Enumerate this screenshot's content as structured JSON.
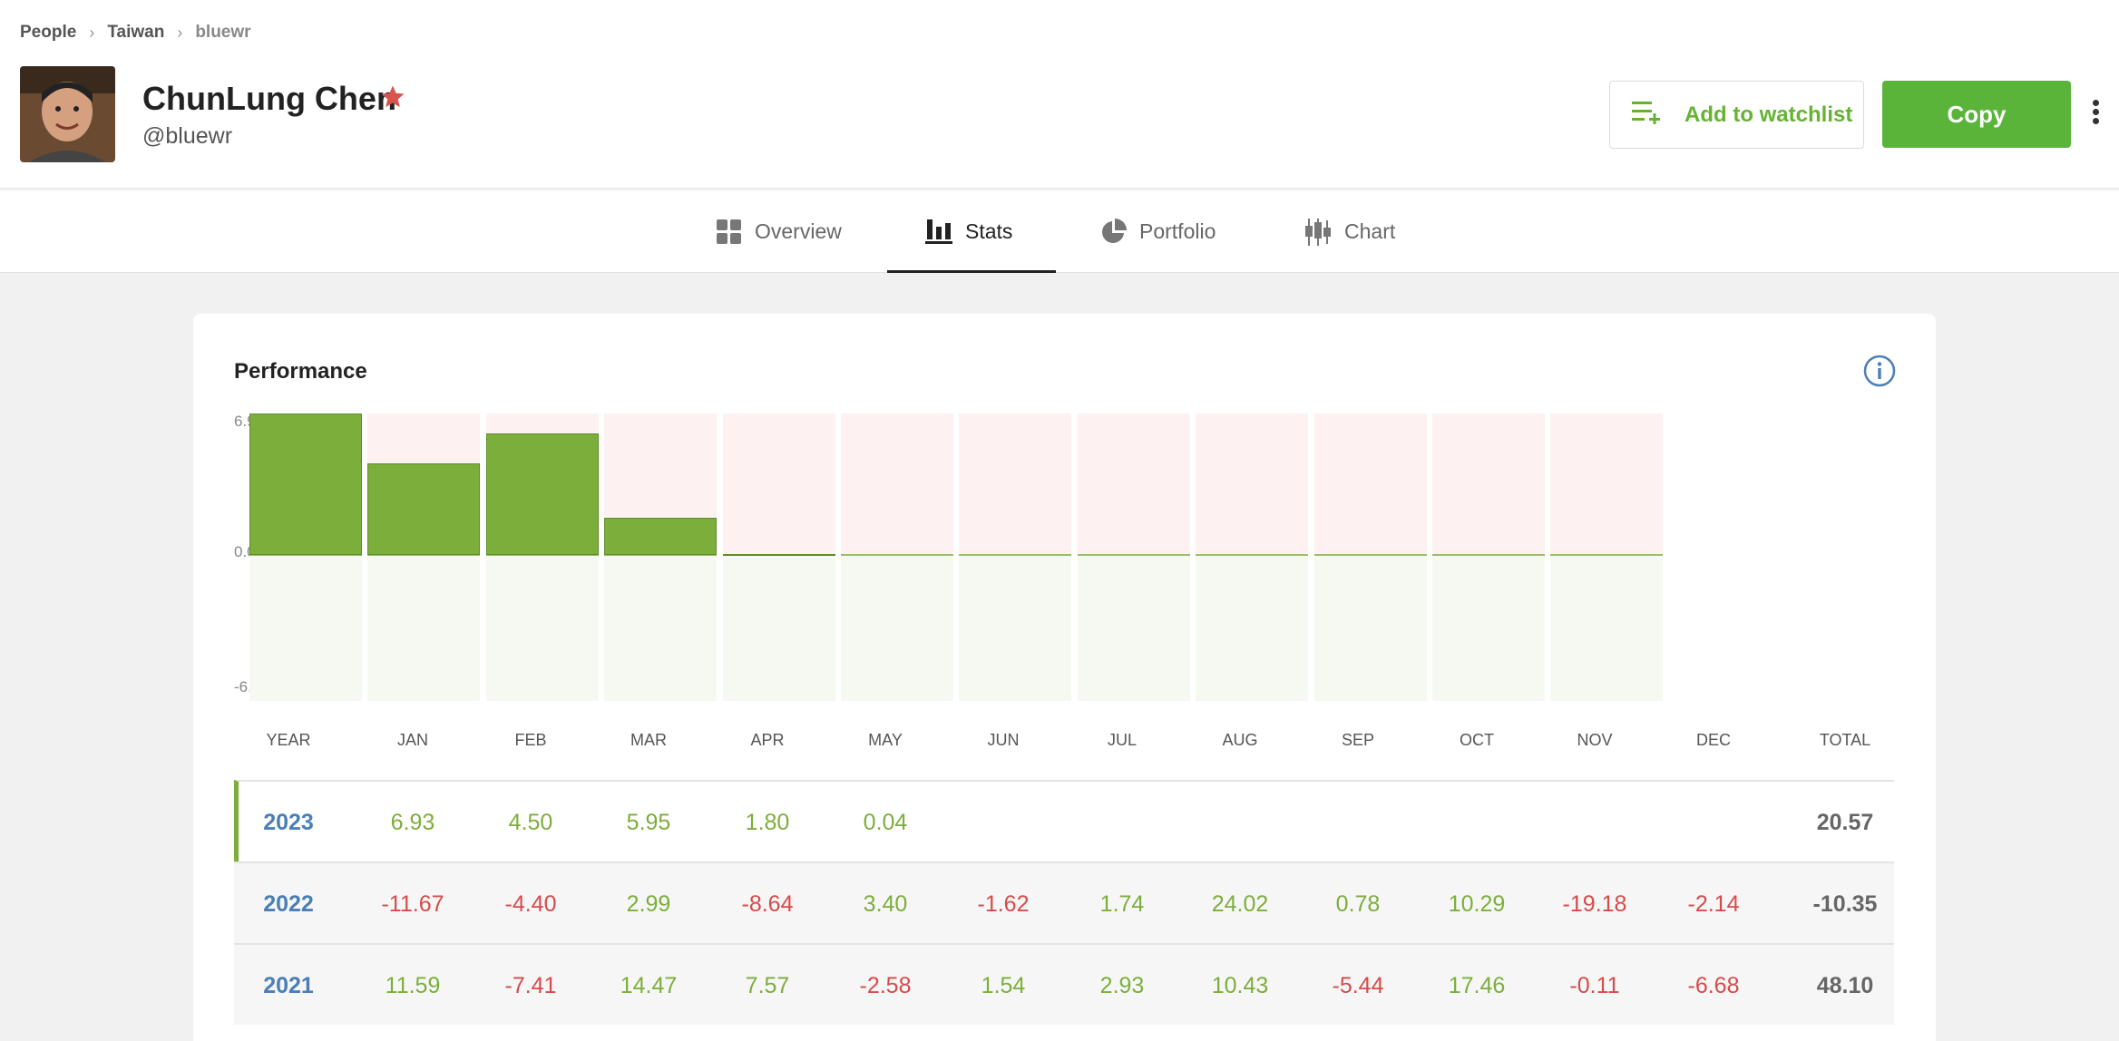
{
  "breadcrumb": {
    "people": "People",
    "country": "Taiwan",
    "user": "bluewr"
  },
  "profile": {
    "name": "ChunLung Chen",
    "handle": "@bluewr"
  },
  "actions": {
    "watchlist_label": "Add to watchlist",
    "copy_label": "Copy"
  },
  "tabs": [
    {
      "label": "Overview",
      "icon": "grid-icon"
    },
    {
      "label": "Stats",
      "icon": "bar-chart-icon"
    },
    {
      "label": "Portfolio",
      "icon": "pie-chart-icon"
    },
    {
      "label": "Chart",
      "icon": "candlestick-icon"
    }
  ],
  "performance": {
    "title": "Performance"
  },
  "colors": {
    "positive": "#7cae3b",
    "negative": "#d84a4a",
    "year": "#4a7fb6",
    "copy_button": "#5bb43a"
  },
  "chart_data": {
    "type": "bar",
    "categories": [
      "JAN",
      "FEB",
      "MAR",
      "APR",
      "MAY",
      "JUN",
      "JUL",
      "AUG",
      "SEP",
      "OCT",
      "NOV",
      "DEC"
    ],
    "series": [
      {
        "values": [
          6.93,
          4.5,
          5.95,
          1.8,
          0.04,
          null,
          null,
          null,
          null,
          null,
          null,
          null
        ]
      }
    ],
    "yticks": [
      "6.93",
      "0.00",
      "-6.93"
    ],
    "ylim": [
      -6.93,
      6.93
    ]
  },
  "table": {
    "headers": [
      "YEAR",
      "JAN",
      "FEB",
      "MAR",
      "APR",
      "MAY",
      "JUN",
      "JUL",
      "AUG",
      "SEP",
      "OCT",
      "NOV",
      "DEC",
      "TOTAL"
    ],
    "rows": [
      {
        "year": "2023",
        "values": [
          "6.93",
          "4.50",
          "5.95",
          "1.80",
          "0.04",
          "",
          "",
          "",
          "",
          "",
          "",
          ""
        ],
        "total": "20.57"
      },
      {
        "year": "2022",
        "values": [
          "-11.67",
          "-4.40",
          "2.99",
          "-8.64",
          "3.40",
          "-1.62",
          "1.74",
          "24.02",
          "0.78",
          "10.29",
          "-19.18",
          "-2.14"
        ],
        "total": "-10.35"
      },
      {
        "year": "2021",
        "values": [
          "11.59",
          "-7.41",
          "14.47",
          "7.57",
          "-2.58",
          "1.54",
          "2.93",
          "10.43",
          "-5.44",
          "17.46",
          "-0.11",
          "-6.68"
        ],
        "total": "48.10"
      }
    ]
  }
}
